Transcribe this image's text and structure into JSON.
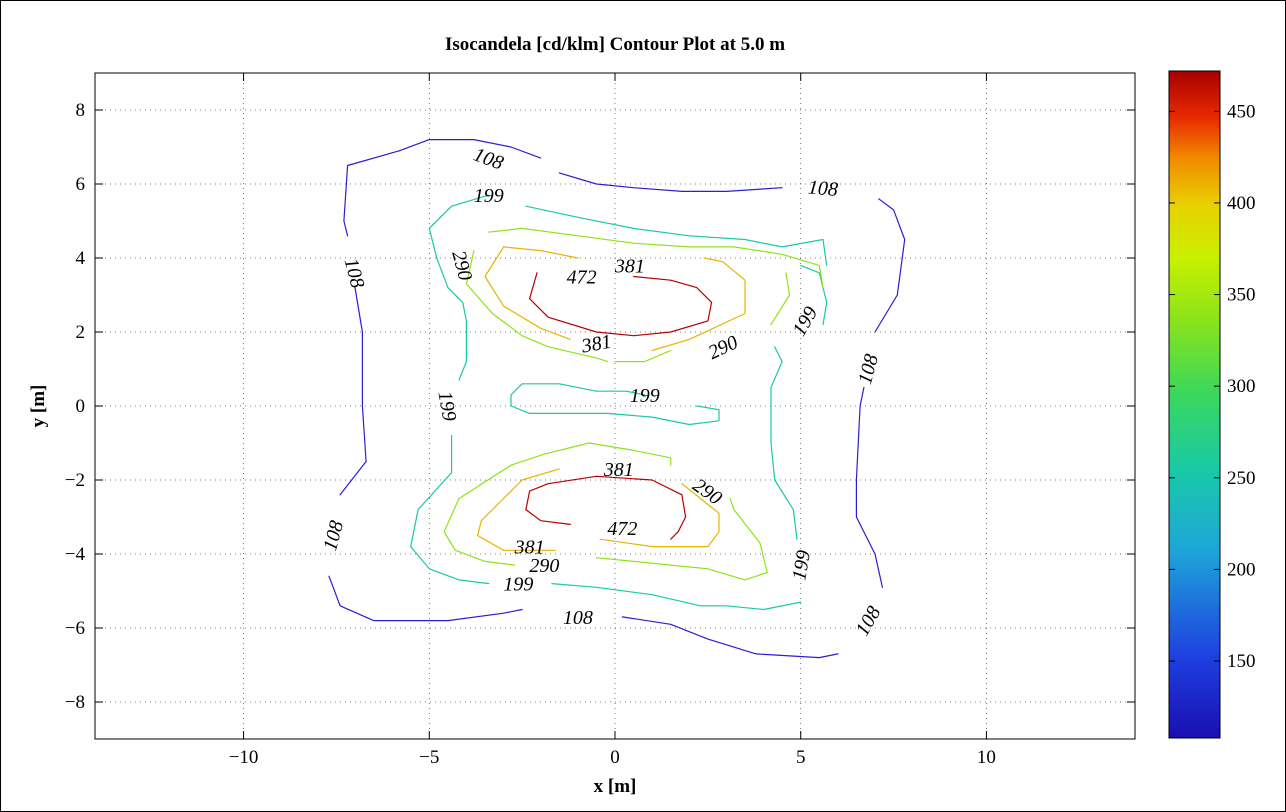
{
  "chart_data": {
    "type": "contour",
    "title": "Isocandela [cd/klm] Contour Plot at 5.0 m",
    "xlabel": "x [m]",
    "ylabel": "y [m]",
    "xlim": [
      -14,
      14
    ],
    "ylim": [
      -9,
      9
    ],
    "xticks": [
      -10,
      -5,
      0,
      5,
      10
    ],
    "xtick_labels": [
      "−10",
      "−5",
      "0",
      "5",
      "10"
    ],
    "yticks": [
      -8,
      -6,
      -4,
      -2,
      0,
      2,
      4,
      6,
      8
    ],
    "ytick_labels": [
      "−8",
      "−6",
      "−4",
      "−2",
      "0",
      "2",
      "4",
      "6",
      "8"
    ],
    "grid": true,
    "colormap": "jet",
    "colorbar": {
      "range": [
        108,
        472
      ],
      "ticks": [
        150,
        200,
        250,
        300,
        350,
        400,
        450
      ],
      "tick_labels": [
        "150",
        "200",
        "250",
        "300",
        "350",
        "400",
        "450"
      ]
    },
    "levels": [
      {
        "value": 108,
        "color": "#2b1ed2"
      },
      {
        "value": 199,
        "color": "#18c9a8"
      },
      {
        "value": 290,
        "color": "#8de418"
      },
      {
        "value": 381,
        "color": "#e8b400"
      },
      {
        "value": 472,
        "color": "#b80000"
      }
    ],
    "contours": [
      {
        "level": 108,
        "points": [
          [
            -5.8,
            6.9
          ],
          [
            -5,
            7.2
          ],
          [
            -3.8,
            7.2
          ],
          [
            -2.8,
            7.0
          ],
          [
            -2.0,
            6.7
          ]
        ]
      },
      {
        "level": 108,
        "points": [
          [
            -1.5,
            6.3
          ],
          [
            -0.5,
            6.0
          ],
          [
            0.5,
            5.9
          ],
          [
            1.8,
            5.8
          ],
          [
            3.0,
            5.8
          ],
          [
            4.5,
            5.9
          ]
        ]
      },
      {
        "level": 108,
        "points": [
          [
            -5.8,
            6.9
          ],
          [
            -7.2,
            6.5
          ],
          [
            -7.3,
            5.0
          ],
          [
            -7.2,
            4.6
          ]
        ]
      },
      {
        "level": 108,
        "points": [
          [
            -7.0,
            3.2
          ],
          [
            -6.8,
            2.0
          ],
          [
            -6.8,
            0
          ],
          [
            -6.7,
            -1.5
          ],
          [
            -7.4,
            -2.4
          ]
        ]
      },
      {
        "level": 108,
        "points": [
          [
            -7.7,
            -4.6
          ],
          [
            -7.4,
            -5.4
          ],
          [
            -6.5,
            -5.8
          ],
          [
            -5.5,
            -5.8
          ],
          [
            -4.5,
            -5.8
          ],
          [
            -3.0,
            -5.6
          ],
          [
            -2.5,
            -5.5
          ]
        ]
      },
      {
        "level": 108,
        "points": [
          [
            0.2,
            -5.7
          ],
          [
            1.5,
            -5.9
          ],
          [
            2.5,
            -6.3
          ],
          [
            3.8,
            -6.7
          ],
          [
            5.5,
            -6.8
          ],
          [
            6.0,
            -6.7
          ]
        ]
      },
      {
        "level": 108,
        "points": [
          [
            7.2,
            -4.9
          ],
          [
            7.0,
            -4.0
          ],
          [
            6.5,
            -3.0
          ],
          [
            6.5,
            -2.0
          ],
          [
            6.6,
            0
          ],
          [
            6.7,
            0.5
          ]
        ]
      },
      {
        "level": 108,
        "points": [
          [
            7.0,
            2.0
          ],
          [
            7.6,
            3.0
          ],
          [
            7.8,
            4.5
          ],
          [
            7.5,
            5.3
          ],
          [
            7.1,
            5.6
          ]
        ]
      },
      {
        "level": 199,
        "points": [
          [
            -3.4,
            5.7
          ],
          [
            -4.4,
            5.4
          ],
          [
            -5.0,
            4.8
          ],
          [
            -4.8,
            4.0
          ],
          [
            -4.5,
            3.2
          ],
          [
            -4.1,
            2.8
          ],
          [
            -4.0,
            2.3
          ],
          [
            -4.0,
            1.2
          ],
          [
            -4.2,
            0.7
          ]
        ]
      },
      {
        "level": 199,
        "points": [
          [
            -4.4,
            -0.8
          ],
          [
            -4.4,
            -1.8
          ],
          [
            -5.3,
            -2.8
          ],
          [
            -5.5,
            -3.8
          ],
          [
            -5.0,
            -4.4
          ],
          [
            -4.2,
            -4.7
          ],
          [
            -3.4,
            -4.8
          ]
        ]
      },
      {
        "level": 199,
        "points": [
          [
            -1.7,
            -4.8
          ],
          [
            -0.5,
            -4.9
          ],
          [
            1.0,
            -5.1
          ],
          [
            2.3,
            -5.4
          ],
          [
            3.0,
            -5.4
          ],
          [
            4.0,
            -5.5
          ],
          [
            5.0,
            -5.3
          ]
        ]
      },
      {
        "level": 199,
        "points": [
          [
            4.9,
            -3.6
          ],
          [
            4.8,
            -2.8
          ],
          [
            4.3,
            -2.0
          ],
          [
            4.2,
            -1.0
          ],
          [
            4.2,
            0.5
          ],
          [
            4.5,
            1.2
          ],
          [
            4.3,
            1.6
          ]
        ]
      },
      {
        "level": 199,
        "points": [
          [
            5.0,
            3.8
          ],
          [
            5.5,
            3.6
          ],
          [
            5.7,
            2.8
          ],
          [
            5.6,
            2.2
          ]
        ]
      },
      {
        "level": 199,
        "points": [
          [
            -2.4,
            5.4
          ],
          [
            -1.0,
            5.1
          ],
          [
            0.5,
            4.8
          ],
          [
            2.0,
            4.6
          ],
          [
            3.5,
            4.5
          ],
          [
            4.5,
            4.3
          ],
          [
            5.6,
            4.5
          ],
          [
            5.7,
            3.8
          ]
        ]
      },
      {
        "level": 199,
        "points": [
          [
            -0.5,
            0.4
          ],
          [
            -1.5,
            0.6
          ],
          [
            -2.5,
            0.6
          ],
          [
            -2.8,
            0.3
          ],
          [
            -2.8,
            0.0
          ],
          [
            -2.3,
            -0.2
          ],
          [
            -1.0,
            -0.2
          ],
          [
            -0.2,
            -0.2
          ],
          [
            1.0,
            -0.3
          ],
          [
            2.0,
            -0.5
          ],
          [
            2.8,
            -0.4
          ],
          [
            2.8,
            -0.1
          ],
          [
            2.2,
            0.0
          ]
        ]
      },
      {
        "level": 199,
        "points": [
          [
            0.8,
            0.3
          ],
          [
            0.3,
            0.4
          ],
          [
            -0.5,
            0.4
          ]
        ]
      },
      {
        "level": 290,
        "points": [
          [
            -3.4,
            4.7
          ],
          [
            -2.5,
            4.8
          ],
          [
            -1.0,
            4.6
          ],
          [
            0.5,
            4.4
          ],
          [
            2.0,
            4.3
          ],
          [
            3.2,
            4.3
          ],
          [
            4.5,
            4.1
          ],
          [
            5.5,
            3.8
          ],
          [
            5.6,
            3.2
          ]
        ]
      },
      {
        "level": 290,
        "points": [
          [
            -3.8,
            4.2
          ],
          [
            -4.0,
            3.3
          ],
          [
            -3.3,
            2.5
          ],
          [
            -2.5,
            1.9
          ],
          [
            -1.8,
            1.6
          ],
          [
            -0.5,
            1.3
          ],
          [
            -0.2,
            1.2
          ]
        ]
      },
      {
        "level": 290,
        "points": [
          [
            0.0,
            1.2
          ],
          [
            0.8,
            1.2
          ],
          [
            1.5,
            1.5
          ]
        ]
      },
      {
        "level": 290,
        "points": [
          [
            4.2,
            2.2
          ],
          [
            4.7,
            3.0
          ],
          [
            4.6,
            3.6
          ]
        ]
      },
      {
        "level": 290,
        "points": [
          [
            -0.7,
            -1.0
          ],
          [
            0.5,
            -1.2
          ],
          [
            1.5,
            -1.4
          ],
          [
            1.5,
            -1.6
          ]
        ]
      },
      {
        "level": 290,
        "points": [
          [
            -0.7,
            -1.0
          ],
          [
            -1.9,
            -1.3
          ],
          [
            -2.8,
            -1.6
          ],
          [
            -4.2,
            -2.5
          ],
          [
            -4.6,
            -3.4
          ],
          [
            -4.3,
            -3.9
          ],
          [
            -3.5,
            -4.2
          ],
          [
            -2.7,
            -4.3
          ]
        ]
      },
      {
        "level": 290,
        "points": [
          [
            -0.5,
            -4.1
          ],
          [
            0.5,
            -4.2
          ],
          [
            1.5,
            -4.3
          ],
          [
            2.5,
            -4.4
          ],
          [
            3.5,
            -4.7
          ],
          [
            4.1,
            -4.5
          ],
          [
            3.9,
            -3.7
          ],
          [
            3.2,
            -2.8
          ],
          [
            3.1,
            -2.5
          ]
        ]
      },
      {
        "level": 381,
        "points": [
          [
            -3.0,
            4.3
          ],
          [
            -2.0,
            4.2
          ],
          [
            -1.0,
            4.0
          ]
        ]
      },
      {
        "level": 381,
        "points": [
          [
            -3.0,
            4.3
          ],
          [
            -3.5,
            3.5
          ],
          [
            -3.0,
            2.7
          ],
          [
            -2.0,
            2.1
          ],
          [
            -1.2,
            1.8
          ]
        ]
      },
      {
        "level": 381,
        "points": [
          [
            1.0,
            1.5
          ],
          [
            2.0,
            1.8
          ],
          [
            3.5,
            2.5
          ],
          [
            3.5,
            3.4
          ],
          [
            2.9,
            3.9
          ],
          [
            2.4,
            4.0
          ]
        ]
      },
      {
        "level": 381,
        "points": [
          [
            -3.7,
            -3.5
          ],
          [
            -3.6,
            -3.1
          ],
          [
            -3.0,
            -2.5
          ],
          [
            -2.5,
            -2.0
          ],
          [
            -1.5,
            -1.7
          ]
        ]
      },
      {
        "level": 381,
        "points": [
          [
            -1.6,
            -3.9
          ],
          [
            -3.0,
            -3.9
          ],
          [
            -3.7,
            -3.5
          ]
        ]
      },
      {
        "level": 381,
        "points": [
          [
            -0.4,
            -3.6
          ],
          [
            1.0,
            -3.8
          ],
          [
            2.5,
            -3.8
          ],
          [
            2.8,
            -3.4
          ],
          [
            2.8,
            -2.9
          ],
          [
            2.3,
            -2.5
          ],
          [
            1.8,
            -2.1
          ]
        ]
      },
      {
        "level": 472,
        "points": [
          [
            -2.1,
            3.6
          ],
          [
            -2.3,
            2.9
          ],
          [
            -1.8,
            2.4
          ],
          [
            -0.5,
            2.0
          ],
          [
            0.5,
            1.9
          ],
          [
            1.5,
            2.0
          ],
          [
            2.5,
            2.3
          ],
          [
            2.6,
            2.8
          ],
          [
            2.2,
            3.2
          ],
          [
            1.5,
            3.4
          ],
          [
            0.5,
            3.5
          ]
        ]
      },
      {
        "level": 472,
        "points": [
          [
            -2.4,
            -2.8
          ],
          [
            -2.3,
            -2.3
          ],
          [
            -1.8,
            -2.1
          ],
          [
            -0.5,
            -1.9
          ],
          [
            1.0,
            -2.0
          ],
          [
            1.8,
            -2.4
          ],
          [
            1.9,
            -3.0
          ],
          [
            1.7,
            -3.4
          ],
          [
            1.5,
            -3.6
          ]
        ]
      },
      {
        "level": 472,
        "points": [
          [
            -2.4,
            -2.8
          ],
          [
            -2.0,
            -3.1
          ],
          [
            -1.2,
            -3.2
          ]
        ]
      }
    ],
    "labels": [
      {
        "text": "108",
        "x": -3.4,
        "y": 6.7,
        "angle": 20
      },
      {
        "text": "108",
        "x": 5.6,
        "y": 5.9,
        "angle": 5
      },
      {
        "text": "108",
        "x": -7.0,
        "y": 3.6,
        "angle": 75
      },
      {
        "text": "108",
        "x": 6.8,
        "y": 1.0,
        "angle": -75
      },
      {
        "text": "108",
        "x": -7.6,
        "y": -3.5,
        "angle": -75
      },
      {
        "text": "108",
        "x": -1.0,
        "y": -5.7,
        "angle": 0
      },
      {
        "text": "108",
        "x": 6.8,
        "y": -5.8,
        "angle": -60
      },
      {
        "text": "199",
        "x": -3.4,
        "y": 5.7,
        "angle": 0
      },
      {
        "text": "199",
        "x": 5.1,
        "y": 2.3,
        "angle": -60
      },
      {
        "text": "199",
        "x": -4.5,
        "y": 0.0,
        "angle": 80
      },
      {
        "text": "199",
        "x": 0.8,
        "y": 0.3,
        "angle": 0
      },
      {
        "text": "199",
        "x": -2.6,
        "y": -4.8,
        "angle": 0
      },
      {
        "text": "199",
        "x": 5.0,
        "y": -4.3,
        "angle": -80
      },
      {
        "text": "290",
        "x": -4.1,
        "y": 3.8,
        "angle": 75
      },
      {
        "text": "290",
        "x": 2.9,
        "y": 1.6,
        "angle": -25
      },
      {
        "text": "290",
        "x": 2.5,
        "y": -2.3,
        "angle": 35
      },
      {
        "text": "290",
        "x": -1.9,
        "y": -4.3,
        "angle": 0
      },
      {
        "text": "381",
        "x": 0.4,
        "y": 3.8,
        "angle": 0
      },
      {
        "text": "381",
        "x": -0.5,
        "y": 1.7,
        "angle": -10
      },
      {
        "text": "381",
        "x": 0.1,
        "y": -1.7,
        "angle": 0
      },
      {
        "text": "381",
        "x": -2.3,
        "y": -3.8,
        "angle": 0
      },
      {
        "text": "472",
        "x": -0.9,
        "y": 3.5,
        "angle": 0
      },
      {
        "text": "472",
        "x": 0.2,
        "y": -3.3,
        "angle": 0
      }
    ]
  }
}
